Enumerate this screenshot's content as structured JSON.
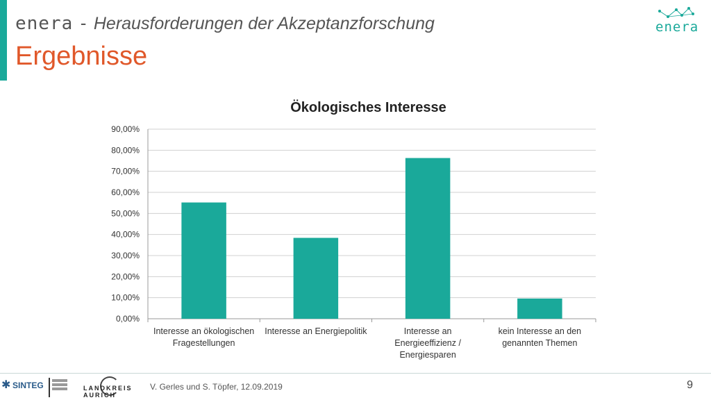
{
  "header": {
    "brand": "enera",
    "separator": "-",
    "subtitle": "Herausforderungen der Akzeptanzforschung",
    "title": "Ergebnisse"
  },
  "logo": {
    "text": "enera",
    "icon": "network-dots-icon"
  },
  "chart_data": {
    "type": "bar",
    "title": "Ökologisches Interesse",
    "categories": [
      [
        "Interesse an ökologischen",
        "Fragestellungen"
      ],
      [
        "Interesse an Energiepolitik"
      ],
      [
        "Interesse an",
        "Energieeffizienz /",
        "Energiesparen"
      ],
      [
        "kein Interesse an den",
        "genannten Themen"
      ]
    ],
    "values": [
      55.2,
      38.4,
      76.3,
      9.6
    ],
    "ylim": [
      0,
      90
    ],
    "yticks": [
      "0,00%",
      "10,00%",
      "20,00%",
      "30,00%",
      "40,00%",
      "50,00%",
      "60,00%",
      "70,00%",
      "80,00%",
      "90,00%"
    ],
    "grid": true,
    "bar_color": "#1aa99a",
    "grid_color": "#d0d0d0"
  },
  "footer": {
    "sinteg": "SINTEG",
    "landkreis": "LANDKREIS AURICH",
    "credits": "V. Gerles und S. Töpfer, 12.09.2019",
    "page_number": "9"
  }
}
